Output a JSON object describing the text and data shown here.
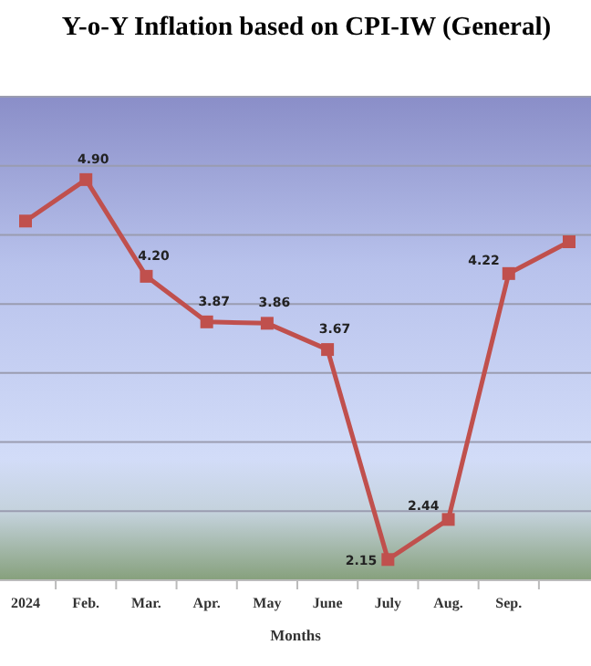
{
  "chart_data": {
    "type": "line",
    "title": "Y-o-Y Inflation based on CPI-IW (General)",
    "xlabel": "Months",
    "categories": [
      "2024",
      "Feb.",
      "Mar.",
      "Apr.",
      "May",
      "June",
      "July",
      "Aug.",
      "Sep.",
      null
    ],
    "series": [
      {
        "color": "#c0504d",
        "values": [
          4.6,
          4.9,
          4.2,
          3.87,
          3.86,
          3.67,
          2.15,
          2.44,
          4.22,
          4.45
        ],
        "value_labels": [
          null,
          "4.90",
          "4.20",
          "3.87",
          "3.86",
          "3.67",
          "2.15",
          "2.44",
          "4.22",
          null
        ]
      }
    ],
    "ylim": [
      2,
      5.5
    ],
    "yticks": [
      {
        "value": 2,
        "label": null
      },
      {
        "value": 2.5,
        "label": null
      },
      {
        "value": 3,
        "label": null
      },
      {
        "value": 3.5,
        "label": null
      },
      {
        "value": 4,
        "label": null
      },
      {
        "value": 4.5,
        "label": null
      },
      {
        "value": 5,
        "label": null
      },
      {
        "value": 5.5,
        "label": null
      }
    ],
    "tick_labels": "x",
    "grid": "y",
    "marker": "square",
    "line_style": "solid"
  }
}
